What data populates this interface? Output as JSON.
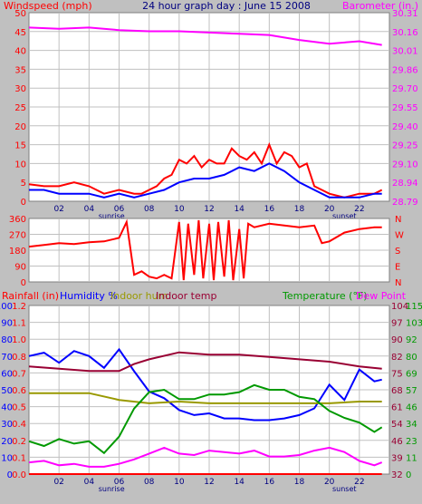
{
  "header": {
    "left": "Windspeed (mph)",
    "center": "24 hour graph day : June 15 2008",
    "right": "Barometer (in.)"
  },
  "markers": {
    "sunrise": "sunrise",
    "sunset": "sunset"
  },
  "hour_labels": [
    "02",
    "04",
    "06",
    "08",
    "10",
    "12",
    "14",
    "16",
    "18",
    "20",
    "22"
  ],
  "bottom_header": {
    "rain": "Rainfall (in)",
    "humidity": "Humidity %",
    "indoor_hum": "Indoor hum",
    "indoor_temp": "Indoor temp",
    "temperature": "Temperature (°F)",
    "dew_point": "Dew Point"
  },
  "colors": {
    "background": "#c0c0c0",
    "plot_bg": "#ffffff",
    "grid": "#c0c0c0",
    "red": "#ff0000",
    "blue": "#0000ff",
    "magenta": "#ff00ff",
    "olive": "#999900",
    "maroon": "#990033",
    "green": "#009900"
  },
  "chart_data": [
    {
      "type": "line",
      "x_unit": "hour of day",
      "xlim": [
        0,
        24
      ],
      "left_axis": {
        "label": "Windspeed (mph)",
        "range": [
          0,
          50
        ],
        "ticks": [
          "0",
          "5",
          "10",
          "15",
          "20",
          "25",
          "30",
          "35",
          "40",
          "45",
          "50"
        ]
      },
      "right_axis": {
        "label": "Barometer (in.)",
        "range": [
          28.79,
          30.31
        ],
        "ticks": [
          "28.79",
          "28.94",
          "29.10",
          "29.25",
          "29.40",
          "29.55",
          "29.70",
          "29.86",
          "30.01",
          "30.16",
          "30.31"
        ]
      },
      "series": [
        {
          "color": "red",
          "axis": "left",
          "x": [
            0,
            1,
            2,
            3,
            4,
            5,
            6,
            7,
            7.5,
            8,
            8.5,
            9,
            9.5,
            10,
            10.5,
            11,
            11.5,
            12,
            12.5,
            13,
            13.5,
            14,
            14.5,
            15,
            15.5,
            16,
            16.5,
            17,
            17.5,
            18,
            18.5,
            19,
            19.5,
            20,
            21,
            22,
            23,
            23.5
          ],
          "y": [
            4.5,
            4,
            4,
            5,
            4,
            2,
            3,
            2,
            2,
            3,
            4,
            6,
            7,
            11,
            10,
            12,
            9,
            11,
            10,
            10,
            14,
            12,
            11,
            13,
            10,
            15,
            10,
            13,
            12,
            9,
            10,
            4,
            3,
            2,
            1,
            2,
            2,
            3
          ]
        },
        {
          "color": "blue",
          "axis": "left",
          "x": [
            0,
            1,
            2,
            3,
            4,
            5,
            6,
            7,
            8,
            9,
            10,
            11,
            12,
            13,
            14,
            15,
            16,
            17,
            18,
            19,
            20,
            21,
            22,
            23,
            23.5
          ],
          "y": [
            3,
            3,
            2,
            2,
            2,
            1,
            2,
            1,
            2,
            3,
            5,
            6,
            6,
            7,
            9,
            8,
            10,
            8,
            5,
            3,
            1,
            1,
            1,
            2,
            2
          ]
        },
        {
          "color": "magenta",
          "axis": "right",
          "x": [
            0,
            2,
            4,
            6,
            8,
            10,
            12,
            14,
            16,
            18,
            20,
            22,
            23.5
          ],
          "y": [
            30.19,
            30.18,
            30.19,
            30.17,
            30.16,
            30.16,
            30.15,
            30.14,
            30.13,
            30.09,
            30.06,
            30.08,
            30.05
          ]
        }
      ]
    },
    {
      "type": "line",
      "x_unit": "hour of day",
      "xlim": [
        0,
        24
      ],
      "left_axis": {
        "label": "Wind direction",
        "range": [
          0,
          360
        ],
        "ticks": [
          "0",
          "90",
          "180",
          "270",
          "360"
        ]
      },
      "right_axis": {
        "ticks": [
          "N",
          "E",
          "S",
          "W",
          "N"
        ]
      },
      "series": [
        {
          "color": "red",
          "axis": "left",
          "x": [
            0,
            1,
            2,
            3,
            4,
            5,
            6,
            6.5,
            7,
            7.5,
            8,
            8.5,
            9,
            9.5,
            10,
            10.3,
            10.6,
            11,
            11.3,
            11.6,
            12,
            12.3,
            12.6,
            13,
            13.3,
            13.6,
            14,
            14.3,
            14.6,
            15,
            16,
            17,
            18,
            19,
            19.5,
            20,
            21,
            22,
            23,
            23.5
          ],
          "y": [
            200,
            210,
            220,
            215,
            225,
            230,
            250,
            340,
            40,
            60,
            30,
            20,
            40,
            20,
            340,
            10,
            330,
            40,
            350,
            20,
            330,
            10,
            340,
            30,
            350,
            10,
            300,
            20,
            330,
            310,
            330,
            320,
            310,
            320,
            220,
            230,
            280,
            300,
            310,
            310
          ]
        }
      ]
    },
    {
      "type": "line",
      "x_unit": "hour of day",
      "xlim": [
        0,
        24
      ],
      "axes": [
        {
          "label": "Humidity %",
          "range": [
            0,
            100
          ],
          "ticks": [
            "0",
            "10",
            "20",
            "30",
            "40",
            "50",
            "60",
            "70",
            "80",
            "90",
            "100"
          ]
        },
        {
          "label": "Rainfall (in)",
          "range": [
            0,
            1.2
          ],
          "ticks": [
            "0.0",
            "0.1",
            "0.2",
            "0.4",
            "0.5",
            "0.6",
            "0.7",
            "0.8",
            "1.0",
            "1.1",
            "1.2"
          ]
        },
        {
          "label": "Temperature (°F)",
          "range": [
            32,
            104
          ],
          "ticks": [
            "32",
            "39",
            "46",
            "54",
            "61",
            "68",
            "75",
            "82",
            "90",
            "97",
            "104"
          ]
        },
        {
          "label": "Dew Point",
          "range": [
            0,
            115
          ],
          "ticks": [
            "0",
            "11",
            "23",
            "34",
            "46",
            "57",
            "69",
            "80",
            "92",
            "103",
            "115"
          ]
        }
      ],
      "series": [
        {
          "name": "Humidity %",
          "color": "blue",
          "axis": "Humidity %",
          "x": [
            0,
            1,
            2,
            3,
            4,
            5,
            6,
            7,
            8,
            9,
            10,
            11,
            12,
            13,
            14,
            15,
            16,
            17,
            18,
            19,
            20,
            21,
            22,
            23,
            23.5
          ],
          "y": [
            70,
            72,
            66,
            73,
            70,
            63,
            74,
            61,
            49,
            45,
            38,
            35,
            36,
            33,
            33,
            32,
            32,
            33,
            35,
            39,
            53,
            44,
            62,
            55,
            56
          ]
        },
        {
          "name": "Indoor hum",
          "color": "olive",
          "axis": "Humidity %",
          "x": [
            0,
            2,
            4,
            6,
            8,
            10,
            12,
            14,
            16,
            18,
            20,
            22,
            23.5
          ],
          "y": [
            48,
            48,
            48,
            44,
            42,
            43,
            42,
            42,
            42,
            42,
            42,
            43,
            43
          ]
        },
        {
          "name": "Indoor temp",
          "color": "maroon",
          "axis": "Temperature (°F)",
          "x": [
            0,
            2,
            4,
            6,
            7,
            8,
            10,
            12,
            14,
            16,
            18,
            20,
            22,
            23.5
          ],
          "y": [
            78,
            77,
            76,
            76,
            79,
            81,
            84,
            83,
            83,
            82,
            81,
            80,
            78,
            77
          ]
        },
        {
          "name": "Temperature (°F)",
          "color": "green",
          "axis": "Temperature (°F)",
          "x": [
            0,
            1,
            2,
            3,
            4,
            5,
            6,
            7,
            8,
            9,
            10,
            11,
            12,
            13,
            14,
            15,
            16,
            17,
            18,
            19,
            20,
            21,
            22,
            23,
            23.5
          ],
          "y": [
            46,
            44,
            47,
            45,
            46,
            41,
            48,
            60,
            67,
            68,
            64,
            64,
            66,
            66,
            67,
            70,
            68,
            68,
            65,
            64,
            59,
            56,
            54,
            50,
            52
          ]
        },
        {
          "name": "Dew Point",
          "color": "magenta",
          "axis": "Dew Point",
          "x": [
            0,
            1,
            2,
            3,
            4,
            5,
            6,
            7,
            8,
            9,
            10,
            11,
            12,
            13,
            14,
            15,
            16,
            17,
            18,
            19,
            20,
            21,
            22,
            23,
            23.5
          ],
          "y": [
            8,
            9,
            6,
            7,
            5,
            5,
            7,
            10,
            14,
            18,
            14,
            13,
            16,
            15,
            14,
            16,
            12,
            12,
            13,
            16,
            18,
            15,
            9,
            6,
            8
          ]
        },
        {
          "name": "Rainfall (in)",
          "color": "red",
          "axis": "Rainfall (in)",
          "x": [
            0,
            23.5
          ],
          "y": [
            0,
            0
          ]
        }
      ]
    }
  ]
}
